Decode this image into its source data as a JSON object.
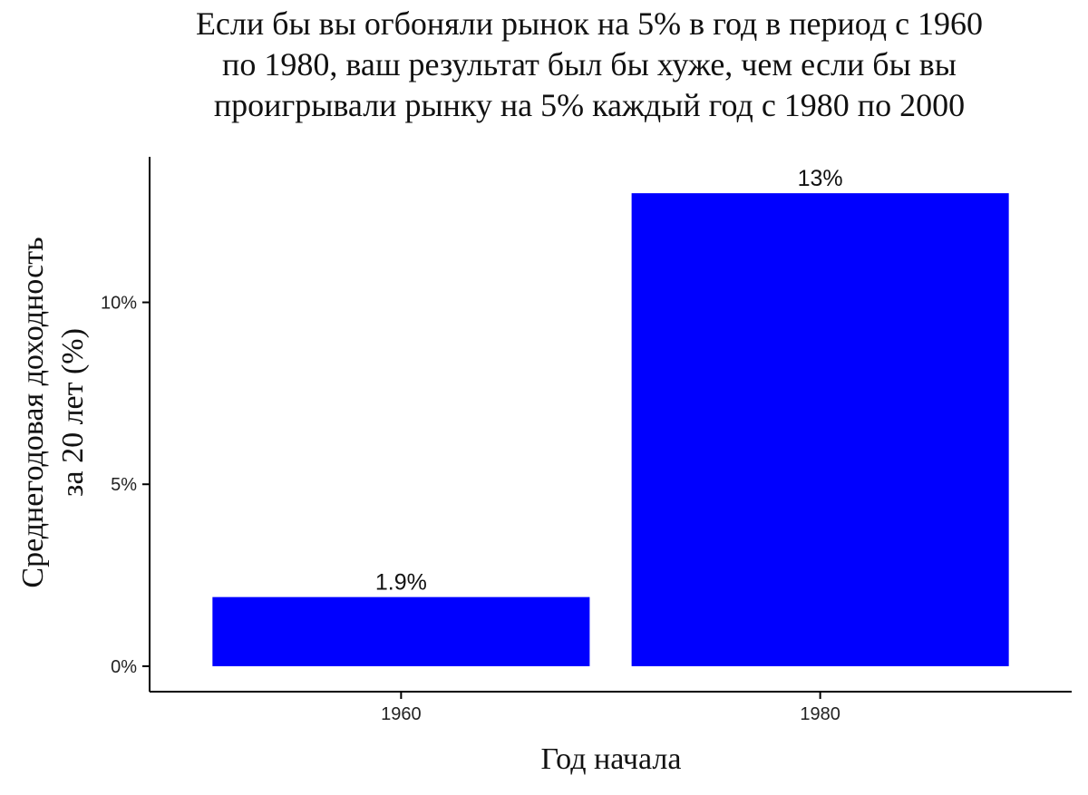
{
  "chart_data": {
    "type": "bar",
    "title_lines": [
      "Если бы вы огбоняли рынок на 5% в год в период с 1960",
      "по 1980, ваш результат был бы хуже, чем если бы вы",
      "проигрывали рынку на 5% каждый год с 1980 по 2000"
    ],
    "xlabel": "Год начала",
    "ylabel_lines": [
      "Среднегодовая доходность",
      "за 20 лет (%)"
    ],
    "categories": [
      "1960",
      "1980"
    ],
    "values": [
      1.9,
      13
    ],
    "value_labels": [
      "1.9%",
      "13%"
    ],
    "yticks": [
      0,
      5,
      10
    ],
    "ytick_labels": [
      "0%",
      "5%",
      "10%"
    ],
    "ylim": [
      -0.7,
      14
    ],
    "bar_color": "#0000ff",
    "grid": false,
    "legend": "none"
  }
}
